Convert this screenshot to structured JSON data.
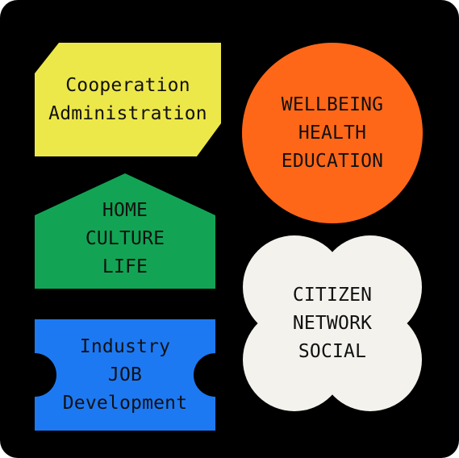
{
  "diagram": {
    "background": "#000000",
    "blocks": [
      {
        "id": "admin",
        "shape": "cut-corner-rectangle",
        "color": "#EDE84A",
        "lines": [
          "Cooperation",
          "Administration"
        ]
      },
      {
        "id": "home",
        "shape": "house-pentagon",
        "color": "#12A454",
        "lines": [
          "HOME",
          "CULTURE",
          "LIFE"
        ]
      },
      {
        "id": "industry",
        "shape": "ticket",
        "color": "#1D79F2",
        "lines": [
          "Industry",
          "JOB",
          "Development"
        ]
      },
      {
        "id": "wellbeing",
        "shape": "circle",
        "color": "#FF6718",
        "lines": [
          "WELLBEING",
          "HEALTH",
          "EDUCATION"
        ]
      },
      {
        "id": "citizen",
        "shape": "quatrefoil",
        "color": "#F3F2ED",
        "lines": [
          "CITIZEN",
          "NETWORK",
          "SOCIAL"
        ]
      }
    ]
  }
}
